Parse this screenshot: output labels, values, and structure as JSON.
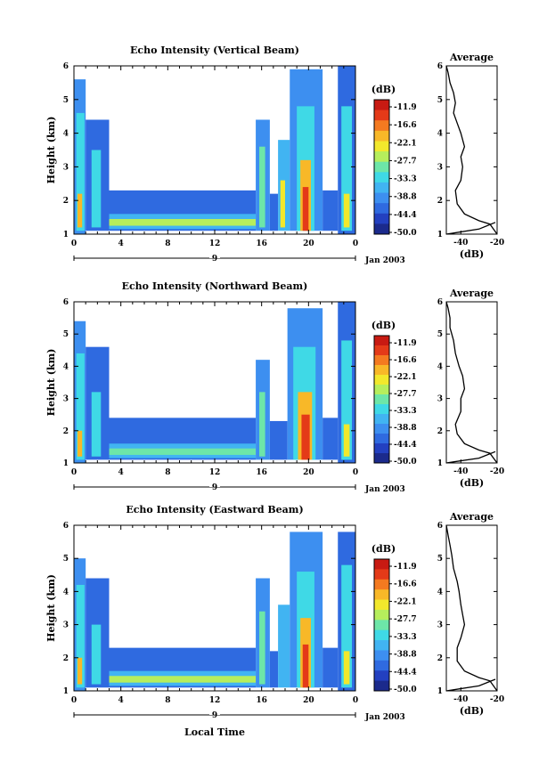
{
  "figure": {
    "colorbar_levels": [
      "-11.9",
      "-16.6",
      "-22.1",
      "-27.7",
      "-33.3",
      "-38.8",
      "-44.4",
      "-50.0"
    ],
    "colorbar_unit": "(dB)",
    "avg_title": "Average",
    "avg_xlabel": "(dB)",
    "date_label": "Jan 2003",
    "day_label": "9",
    "xlabel": "Local Time",
    "colors": [
      "#1b2a8c",
      "#2340c0",
      "#2f6ae0",
      "#3d8ff0",
      "#41b4f2",
      "#3fd9e6",
      "#6de6a8",
      "#b6ee5c",
      "#f2e82c",
      "#f8b828",
      "#f47a20",
      "#e43a18",
      "#c81a12"
    ]
  },
  "chart_data": [
    {
      "type": "heatmap",
      "title": "Echo Intensity (Vertical Beam)",
      "ylabel": "Height (km)",
      "x_ticks": [
        "0",
        "4",
        "8",
        "12",
        "16",
        "20",
        "0"
      ],
      "y_ticks": [
        "1",
        "2",
        "3",
        "4",
        "5",
        "6"
      ],
      "xlim": [
        0,
        24
      ],
      "ylim": [
        1,
        6
      ],
      "cells": [
        {
          "t0": 0,
          "t1": 1,
          "h0": 1.0,
          "h1": 5.6,
          "db": -40
        },
        {
          "t0": 0.2,
          "t1": 0.9,
          "h0": 1.1,
          "h1": 4.6,
          "db": -33
        },
        {
          "t0": 0.3,
          "t1": 0.7,
          "h0": 1.2,
          "h1": 2.2,
          "db": -22
        },
        {
          "t0": 1,
          "t1": 3,
          "h0": 1.1,
          "h1": 4.4,
          "db": -44
        },
        {
          "t0": 1.5,
          "t1": 2.3,
          "h0": 1.2,
          "h1": 3.5,
          "db": -36
        },
        {
          "t0": 3,
          "t1": 15.5,
          "h0": 1.1,
          "h1": 2.3,
          "db": -46
        },
        {
          "t0": 3,
          "t1": 15.5,
          "h0": 1.15,
          "h1": 1.6,
          "db": -38
        },
        {
          "t0": 3,
          "t1": 15.5,
          "h0": 1.25,
          "h1": 1.45,
          "db": -28
        },
        {
          "t0": 15.5,
          "t1": 16.7,
          "h0": 1.1,
          "h1": 4.4,
          "db": -40
        },
        {
          "t0": 15.8,
          "t1": 16.3,
          "h0": 1.2,
          "h1": 3.6,
          "db": -30
        },
        {
          "t0": 16.7,
          "t1": 17.4,
          "h0": 1.1,
          "h1": 2.2,
          "db": -44
        },
        {
          "t0": 17.4,
          "t1": 18.4,
          "h0": 1.1,
          "h1": 3.8,
          "db": -38
        },
        {
          "t0": 17.6,
          "t1": 18.0,
          "h0": 1.2,
          "h1": 2.6,
          "db": -25
        },
        {
          "t0": 18.4,
          "t1": 21.2,
          "h0": 1.1,
          "h1": 5.9,
          "db": -42
        },
        {
          "t0": 19.0,
          "t1": 20.5,
          "h0": 1.1,
          "h1": 4.8,
          "db": -33
        },
        {
          "t0": 19.3,
          "t1": 20.2,
          "h0": 1.1,
          "h1": 3.2,
          "db": -22
        },
        {
          "t0": 19.5,
          "t1": 20.0,
          "h0": 1.1,
          "h1": 2.4,
          "db": -13
        },
        {
          "t0": 21.2,
          "t1": 22.5,
          "h0": 1.1,
          "h1": 2.3,
          "db": -46
        },
        {
          "t0": 22.5,
          "t1": 24,
          "h0": 1.0,
          "h1": 6.0,
          "db": -44
        },
        {
          "t0": 22.8,
          "t1": 23.7,
          "h0": 1.1,
          "h1": 4.8,
          "db": -36
        },
        {
          "t0": 23.0,
          "t1": 23.5,
          "h0": 1.2,
          "h1": 2.2,
          "db": -24
        }
      ],
      "avg_x_ticks": [
        "-40",
        "-20"
      ],
      "avg_y_ticks": [
        "1",
        "2",
        "3",
        "4",
        "5",
        "6"
      ],
      "avg_xlim": [
        -48,
        -20
      ],
      "avg_profile": [
        [
          -20,
          1.0
        ],
        [
          -24,
          1.3
        ],
        [
          -30,
          1.4
        ],
        [
          -38,
          1.6
        ],
        [
          -42,
          1.9
        ],
        [
          -43,
          2.3
        ],
        [
          -40,
          2.6
        ],
        [
          -39,
          3.0
        ],
        [
          -40,
          3.3
        ],
        [
          -38,
          3.6
        ],
        [
          -40,
          4.0
        ],
        [
          -42,
          4.3
        ],
        [
          -44,
          4.6
        ],
        [
          -43,
          4.9
        ],
        [
          -44,
          5.2
        ],
        [
          -46,
          5.5
        ],
        [
          -47,
          5.8
        ],
        [
          -48,
          6.0
        ]
      ]
    },
    {
      "type": "heatmap",
      "title": "Echo Intensity (Northward Beam)",
      "ylabel": "Height (km)",
      "x_ticks": [
        "0",
        "4",
        "8",
        "12",
        "16",
        "20",
        "0"
      ],
      "y_ticks": [
        "1",
        "2",
        "3",
        "4",
        "5",
        "6"
      ],
      "xlim": [
        0,
        24
      ],
      "ylim": [
        1,
        6
      ],
      "cells": [
        {
          "t0": 0,
          "t1": 1,
          "h0": 1.0,
          "h1": 5.4,
          "db": -40
        },
        {
          "t0": 0.2,
          "t1": 0.9,
          "h0": 1.1,
          "h1": 4.4,
          "db": -33
        },
        {
          "t0": 0.3,
          "t1": 0.7,
          "h0": 1.2,
          "h1": 2.0,
          "db": -22
        },
        {
          "t0": 1,
          "t1": 3,
          "h0": 1.1,
          "h1": 4.6,
          "db": -44
        },
        {
          "t0": 1.5,
          "t1": 2.3,
          "h0": 1.2,
          "h1": 3.2,
          "db": -36
        },
        {
          "t0": 3,
          "t1": 15.5,
          "h0": 1.1,
          "h1": 2.4,
          "db": -46
        },
        {
          "t0": 3,
          "t1": 15.5,
          "h0": 1.15,
          "h1": 1.6,
          "db": -38
        },
        {
          "t0": 3,
          "t1": 15.5,
          "h0": 1.25,
          "h1": 1.45,
          "db": -30
        },
        {
          "t0": 15.5,
          "t1": 16.7,
          "h0": 1.1,
          "h1": 4.2,
          "db": -40
        },
        {
          "t0": 15.8,
          "t1": 16.3,
          "h0": 1.2,
          "h1": 3.2,
          "db": -30
        },
        {
          "t0": 16.7,
          "t1": 18.2,
          "h0": 1.1,
          "h1": 2.3,
          "db": -44
        },
        {
          "t0": 18.2,
          "t1": 21.2,
          "h0": 1.1,
          "h1": 5.8,
          "db": -42
        },
        {
          "t0": 18.7,
          "t1": 20.6,
          "h0": 1.1,
          "h1": 4.6,
          "db": -33
        },
        {
          "t0": 19.1,
          "t1": 20.3,
          "h0": 1.1,
          "h1": 3.2,
          "db": -22
        },
        {
          "t0": 19.4,
          "t1": 20.1,
          "h0": 1.1,
          "h1": 2.5,
          "db": -13
        },
        {
          "t0": 21.2,
          "t1": 22.5,
          "h0": 1.1,
          "h1": 2.4,
          "db": -46
        },
        {
          "t0": 22.5,
          "t1": 24,
          "h0": 1.0,
          "h1": 6.0,
          "db": -44
        },
        {
          "t0": 22.8,
          "t1": 23.7,
          "h0": 1.1,
          "h1": 4.8,
          "db": -36
        },
        {
          "t0": 23.0,
          "t1": 23.5,
          "h0": 1.2,
          "h1": 2.2,
          "db": -24
        }
      ],
      "avg_x_ticks": [
        "-40",
        "-20"
      ],
      "avg_y_ticks": [
        "1",
        "2",
        "3",
        "4",
        "5",
        "6"
      ],
      "avg_xlim": [
        -48,
        -20
      ],
      "avg_profile": [
        [
          -20,
          1.0
        ],
        [
          -24,
          1.3
        ],
        [
          -30,
          1.4
        ],
        [
          -38,
          1.6
        ],
        [
          -42,
          1.9
        ],
        [
          -43,
          2.2
        ],
        [
          -40,
          2.6
        ],
        [
          -40,
          3.0
        ],
        [
          -38,
          3.3
        ],
        [
          -39,
          3.7
        ],
        [
          -41,
          4.0
        ],
        [
          -43,
          4.4
        ],
        [
          -44,
          4.8
        ],
        [
          -46,
          5.2
        ],
        [
          -46,
          5.5
        ],
        [
          -47,
          5.8
        ],
        [
          -48,
          6.0
        ]
      ]
    },
    {
      "type": "heatmap",
      "title": "Echo Intensity (Eastward Beam)",
      "ylabel": "Height (km)",
      "x_ticks": [
        "0",
        "4",
        "8",
        "12",
        "16",
        "20",
        "0"
      ],
      "y_ticks": [
        "1",
        "2",
        "3",
        "4",
        "5",
        "6"
      ],
      "xlim": [
        0,
        24
      ],
      "ylim": [
        1,
        6
      ],
      "cells": [
        {
          "t0": 0,
          "t1": 1,
          "h0": 1.0,
          "h1": 5.0,
          "db": -40
        },
        {
          "t0": 0.2,
          "t1": 0.9,
          "h0": 1.1,
          "h1": 4.2,
          "db": -33
        },
        {
          "t0": 0.3,
          "t1": 0.7,
          "h0": 1.2,
          "h1": 2.0,
          "db": -22
        },
        {
          "t0": 1,
          "t1": 3,
          "h0": 1.1,
          "h1": 4.4,
          "db": -44
        },
        {
          "t0": 1.5,
          "t1": 2.3,
          "h0": 1.2,
          "h1": 3.0,
          "db": -36
        },
        {
          "t0": 3,
          "t1": 15.5,
          "h0": 1.1,
          "h1": 2.3,
          "db": -46
        },
        {
          "t0": 3,
          "t1": 15.5,
          "h0": 1.15,
          "h1": 1.6,
          "db": -38
        },
        {
          "t0": 3,
          "t1": 15.5,
          "h0": 1.25,
          "h1": 1.45,
          "db": -28
        },
        {
          "t0": 15.5,
          "t1": 16.7,
          "h0": 1.1,
          "h1": 4.4,
          "db": -40
        },
        {
          "t0": 15.8,
          "t1": 16.3,
          "h0": 1.2,
          "h1": 3.4,
          "db": -30
        },
        {
          "t0": 16.7,
          "t1": 17.4,
          "h0": 1.1,
          "h1": 2.2,
          "db": -44
        },
        {
          "t0": 17.4,
          "t1": 18.4,
          "h0": 1.1,
          "h1": 3.6,
          "db": -38
        },
        {
          "t0": 18.4,
          "t1": 21.2,
          "h0": 1.1,
          "h1": 5.8,
          "db": -42
        },
        {
          "t0": 19.0,
          "t1": 20.5,
          "h0": 1.1,
          "h1": 4.6,
          "db": -33
        },
        {
          "t0": 19.3,
          "t1": 20.2,
          "h0": 1.1,
          "h1": 3.2,
          "db": -22
        },
        {
          "t0": 19.5,
          "t1": 20.0,
          "h0": 1.1,
          "h1": 2.4,
          "db": -13
        },
        {
          "t0": 21.2,
          "t1": 22.5,
          "h0": 1.1,
          "h1": 2.3,
          "db": -46
        },
        {
          "t0": 22.5,
          "t1": 24,
          "h0": 1.0,
          "h1": 5.8,
          "db": -44
        },
        {
          "t0": 22.8,
          "t1": 23.7,
          "h0": 1.1,
          "h1": 4.8,
          "db": -36
        },
        {
          "t0": 23.0,
          "t1": 23.5,
          "h0": 1.2,
          "h1": 2.2,
          "db": -24
        }
      ],
      "avg_x_ticks": [
        "-40",
        "-20"
      ],
      "avg_y_ticks": [
        "1",
        "2",
        "3",
        "4",
        "5",
        "6"
      ],
      "avg_xlim": [
        -48,
        -20
      ],
      "avg_profile": [
        [
          -20,
          1.0
        ],
        [
          -24,
          1.3
        ],
        [
          -30,
          1.4
        ],
        [
          -38,
          1.6
        ],
        [
          -42,
          1.9
        ],
        [
          -42,
          2.3
        ],
        [
          -40,
          2.6
        ],
        [
          -38,
          3.0
        ],
        [
          -39,
          3.3
        ],
        [
          -40,
          3.6
        ],
        [
          -41,
          4.0
        ],
        [
          -42,
          4.3
        ],
        [
          -44,
          4.7
        ],
        [
          -45,
          5.1
        ],
        [
          -46,
          5.4
        ],
        [
          -47,
          5.7
        ],
        [
          -48,
          6.0
        ]
      ]
    }
  ]
}
